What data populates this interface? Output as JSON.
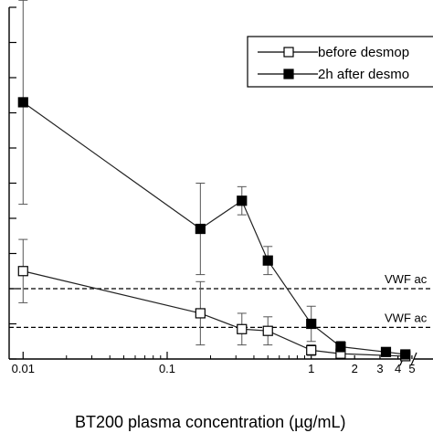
{
  "chart_data": {
    "type": "line",
    "title": "",
    "xlabel": "BT200 plasma concentration (µg/mL)",
    "ylabel": "",
    "x_scale": "log",
    "xlim": [
      0.008,
      7
    ],
    "ylim": [
      0,
      100
    ],
    "x_tick_labels": [
      "0.01",
      "0.1",
      "1",
      "2",
      "3",
      "4",
      "5"
    ],
    "x_tick_values": [
      0.01,
      0.1,
      1,
      2,
      3,
      4,
      5
    ],
    "axis_break_on_x": true,
    "grid": false,
    "legend": "top-right",
    "series": [
      {
        "name": "before desmop",
        "marker": "open-square",
        "points": [
          {
            "x": 0.01,
            "y": 25,
            "err": 9
          },
          {
            "x": 0.17,
            "y": 13,
            "err": 9
          },
          {
            "x": 0.33,
            "y": 8.5,
            "err": 4.5
          },
          {
            "x": 0.5,
            "y": 8,
            "err": 4
          },
          {
            "x": 1.0,
            "y": 2.5,
            "err": 1.5
          },
          {
            "x": 1.6,
            "y": 1.5,
            "err": 0.8
          },
          {
            "x": 4.5,
            "y": 0.8,
            "err": 0.4
          }
        ]
      },
      {
        "name": "2h after desmo",
        "marker": "filled-square",
        "points": [
          {
            "x": 0.01,
            "y": 73,
            "err": 29
          },
          {
            "x": 0.17,
            "y": 37,
            "err": 13
          },
          {
            "x": 0.33,
            "y": 45,
            "err": 4
          },
          {
            "x": 0.5,
            "y": 28,
            "err": 4
          },
          {
            "x": 1.0,
            "y": 10,
            "err": 5
          },
          {
            "x": 1.6,
            "y": 3.5,
            "err": 1.5
          },
          {
            "x": 3.3,
            "y": 2,
            "err": 1
          },
          {
            "x": 4.5,
            "y": 1.3,
            "err": 0.5
          }
        ]
      }
    ],
    "reference_lines": [
      {
        "label": "VWF ac",
        "y": 20
      },
      {
        "label": "VWF ac",
        "y": 9
      }
    ]
  }
}
